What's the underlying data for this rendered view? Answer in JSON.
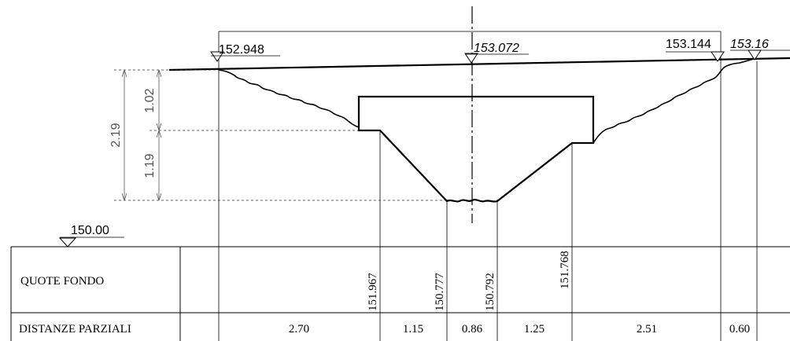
{
  "elevations": {
    "left": "152.948",
    "axis": "153.072",
    "right": "153.144",
    "far_right": "153.16",
    "datum": "150.00"
  },
  "dimensions": {
    "total": "2.19",
    "upper": "1.02",
    "lower": "1.19"
  },
  "table": {
    "rows": [
      {
        "label": "QUOTE FONDO",
        "values": [
          "151.967",
          "150.777",
          "150.792",
          "151.768"
        ]
      },
      {
        "label": "DISTANZE PARZIALI",
        "values": [
          "2.70",
          "1.15",
          "0.86",
          "1.25",
          "2.51",
          "0.60"
        ]
      }
    ]
  },
  "colors": {
    "line": "#000000",
    "dimension": "#555555"
  }
}
